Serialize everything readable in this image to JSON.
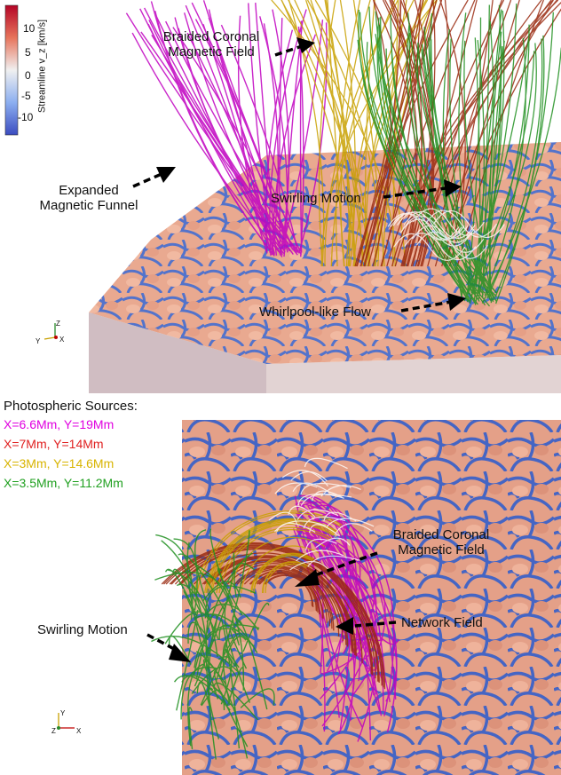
{
  "colorbar": {
    "title": "Streamline v_z [km/s]",
    "ticks": [
      "10",
      "5",
      "0",
      "-5",
      "-10"
    ],
    "colors": {
      "max": "#b40426",
      "mid": "#f0f0f0",
      "min": "#3b4cc0"
    }
  },
  "top_panel": {
    "annotations": {
      "braided": {
        "line1": "Braided Coronal",
        "line2": "Magnetic Field"
      },
      "funnel": {
        "line1": "Expanded",
        "line2": "Magnetic Funnel"
      },
      "swirl": "Swirling Motion",
      "whirlpool": "Whirlpool-like Flow"
    },
    "axes": {
      "z": "Z",
      "y": "Y",
      "x": "X"
    }
  },
  "bottom_panel": {
    "sources_title": "Photospheric Sources:",
    "sources": [
      {
        "label": "X=6.6Mm, Y=19Mm",
        "color": "#e000e0"
      },
      {
        "label": "X=7Mm, Y=14Mm",
        "color": "#e02020"
      },
      {
        "label": "X=3Mm, Y=14.6Mm",
        "color": "#d8b400"
      },
      {
        "label": "X=3.5Mm, Y=11.2Mm",
        "color": "#20a020"
      }
    ],
    "annotations": {
      "braided": {
        "line1": "Braided Coronal",
        "line2": "Magnetic Field"
      },
      "network": "Network Field",
      "swirl": "Swirling Motion"
    },
    "axes": {
      "y": "Y",
      "z": "Z",
      "x": "X"
    }
  }
}
